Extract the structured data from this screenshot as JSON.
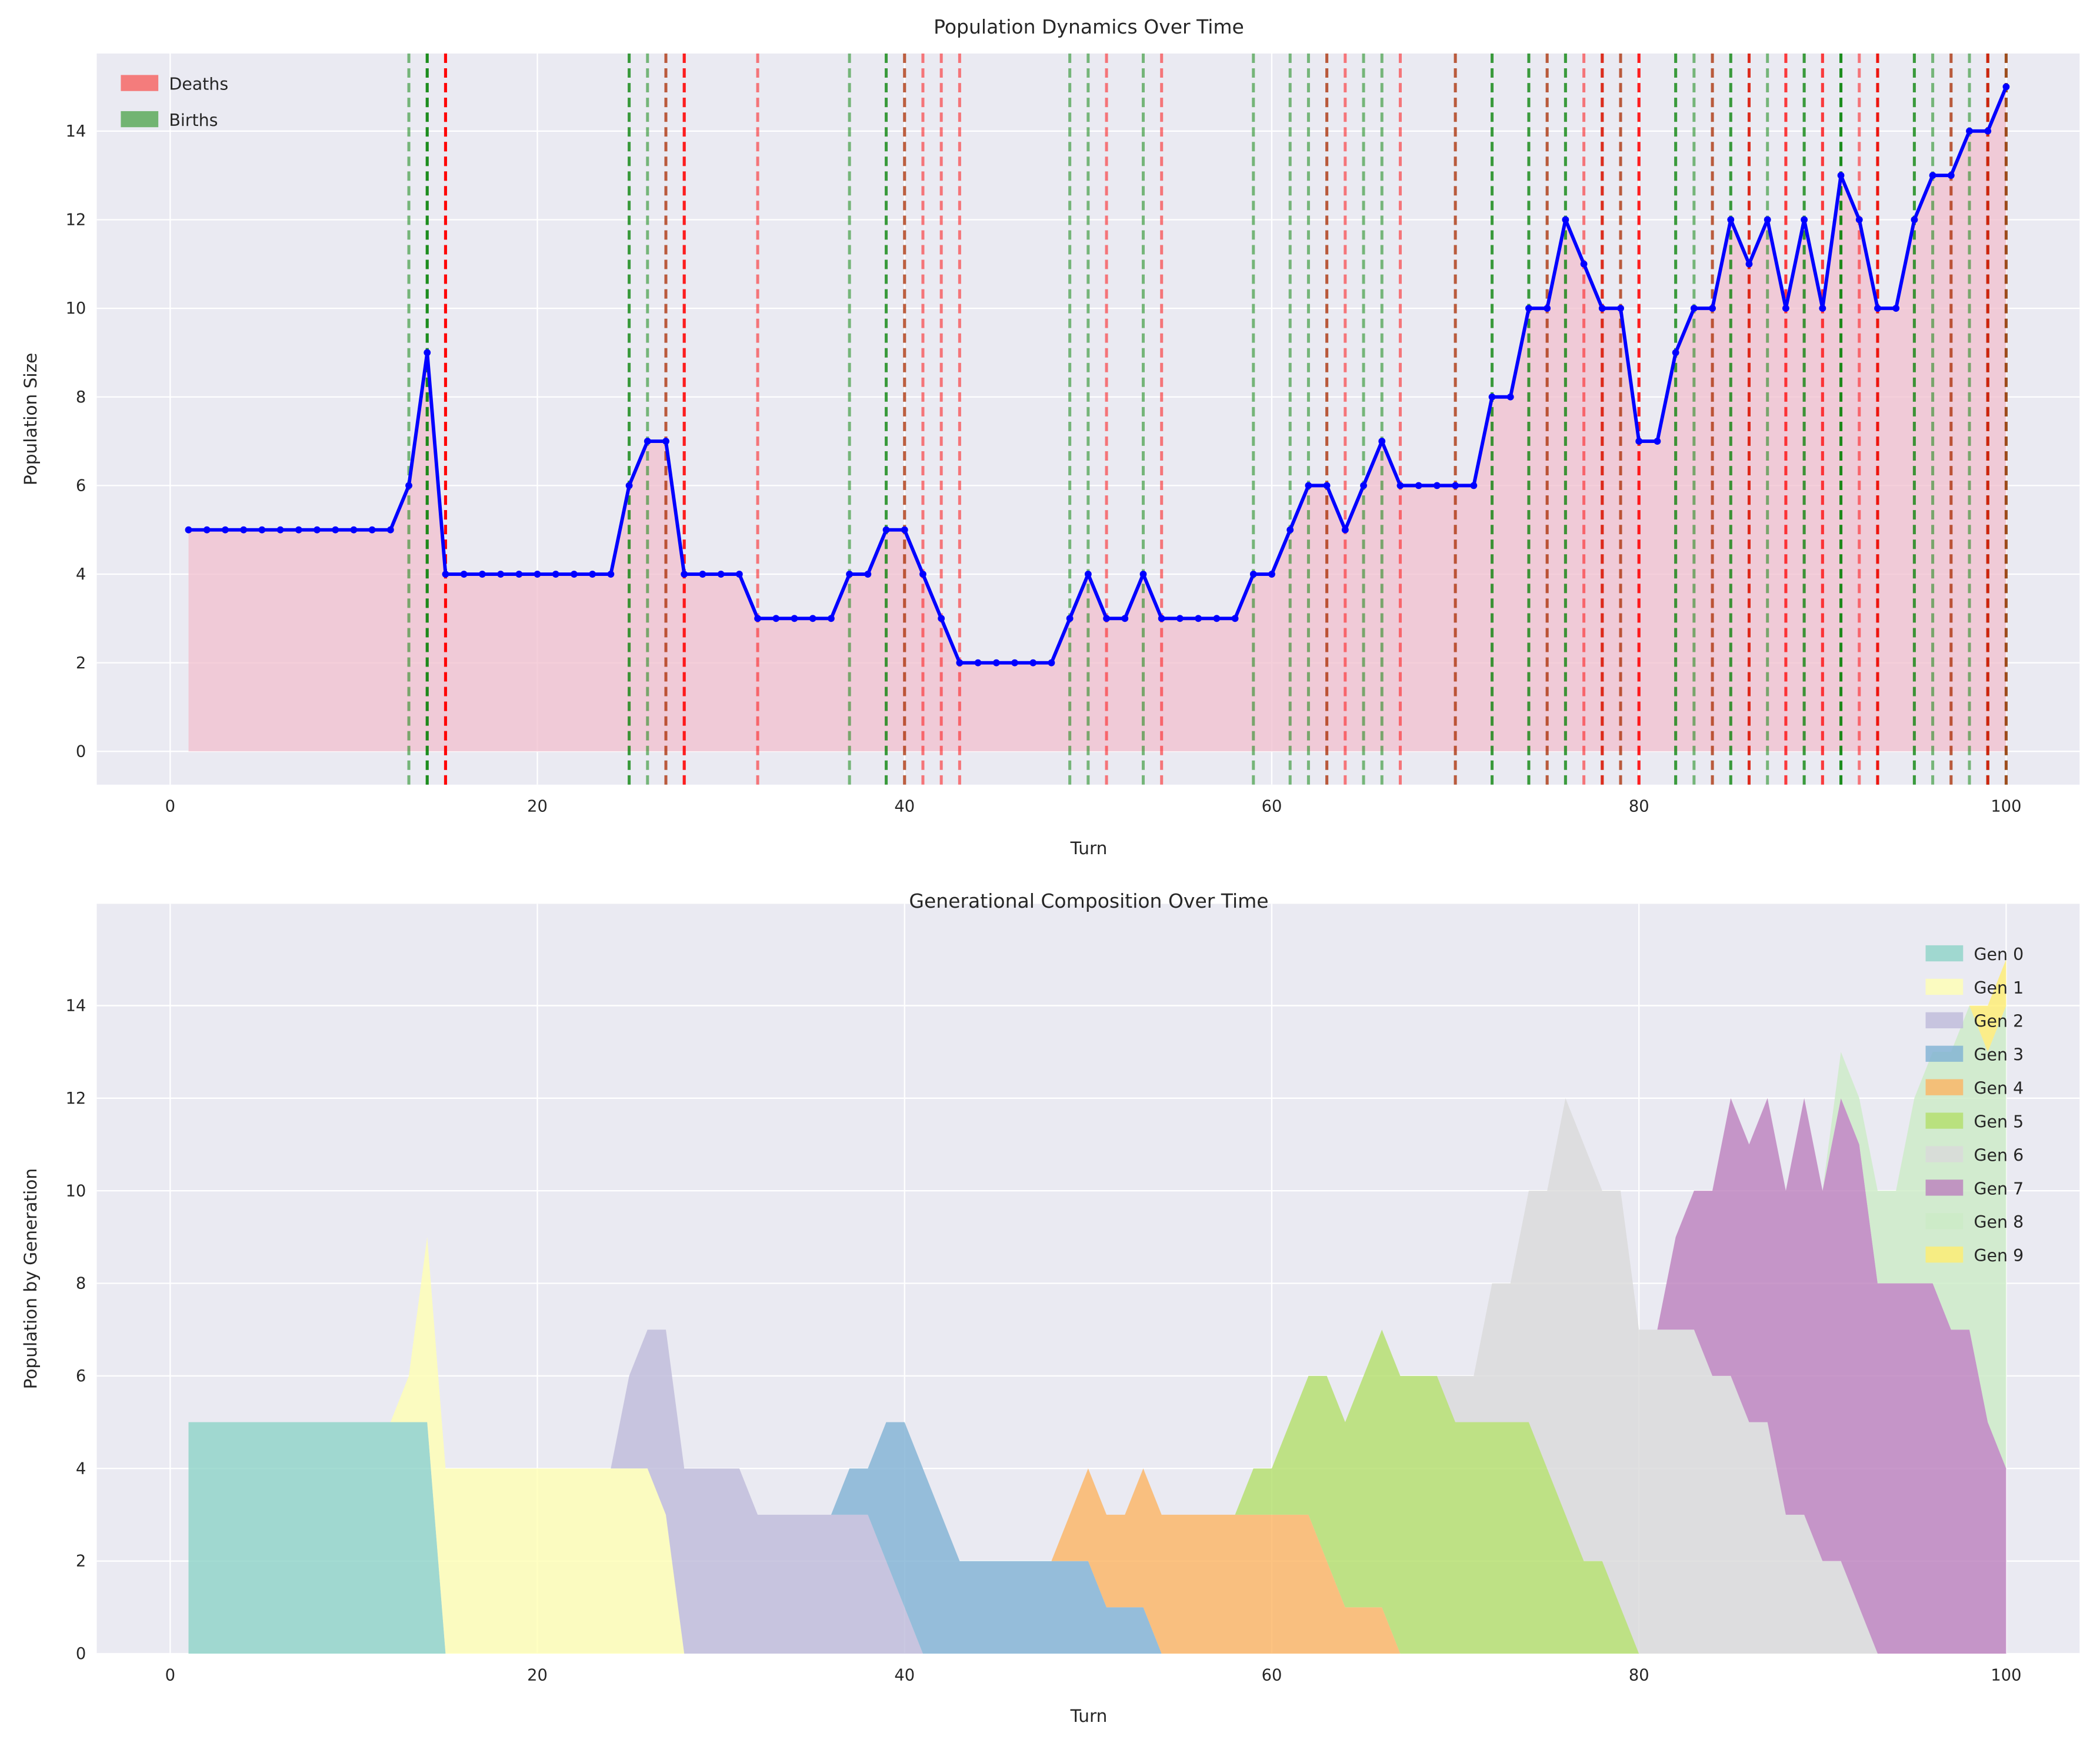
{
  "chart_data": [
    {
      "type": "line",
      "title": "Population Dynamics Over Time",
      "xlabel": "Turn",
      "ylabel": "Population Size",
      "xlim": [
        -4,
        104
      ],
      "ylim": [
        -0.75,
        15.75
      ],
      "xticks": [
        0,
        20,
        40,
        60,
        80,
        100
      ],
      "yticks": [
        0,
        2,
        4,
        6,
        8,
        10,
        12,
        14
      ],
      "grid": true,
      "legend_position": "top-left",
      "legend": [
        {
          "label": "Deaths",
          "color": "#f47c7c"
        },
        {
          "label": "Births",
          "color": "#72b472"
        }
      ],
      "line_color": "#0000ff",
      "fill_color": "#f2bfcd",
      "birth_color": "#008000",
      "death_color": "#ff0000",
      "turns_start": 1,
      "population": [
        5,
        5,
        5,
        5,
        5,
        5,
        5,
        5,
        5,
        5,
        5,
        5,
        6,
        9,
        4,
        4,
        4,
        4,
        4,
        4,
        4,
        4,
        4,
        4,
        6,
        7,
        7,
        4,
        4,
        4,
        4,
        3,
        3,
        3,
        3,
        3,
        4,
        4,
        5,
        5,
        4,
        3,
        2,
        2,
        2,
        2,
        2,
        2,
        3,
        4,
        3,
        3,
        4,
        3,
        3,
        3,
        3,
        3,
        4,
        4,
        5,
        6,
        6,
        5,
        6,
        7,
        6,
        6,
        6,
        6,
        6,
        8,
        8,
        10,
        10,
        12,
        11,
        10,
        10,
        7,
        7,
        9,
        10,
        10,
        12,
        11,
        12,
        10,
        12,
        10,
        13,
        12,
        10,
        10,
        12,
        13,
        13,
        14,
        14,
        15
      ],
      "births": [
        [
          13,
          1
        ],
        [
          14,
          3
        ],
        [
          25,
          2
        ],
        [
          26,
          1
        ],
        [
          27,
          1
        ],
        [
          37,
          1
        ],
        [
          39,
          2
        ],
        [
          40,
          1
        ],
        [
          49,
          1
        ],
        [
          50,
          1
        ],
        [
          53,
          1
        ],
        [
          59,
          1
        ],
        [
          61,
          1
        ],
        [
          62,
          1
        ],
        [
          63,
          1
        ],
        [
          65,
          1
        ],
        [
          66,
          1
        ],
        [
          70,
          1
        ],
        [
          72,
          2
        ],
        [
          74,
          2
        ],
        [
          75,
          1
        ],
        [
          76,
          2
        ],
        [
          78,
          1
        ],
        [
          79,
          1
        ],
        [
          82,
          2
        ],
        [
          83,
          1
        ],
        [
          84,
          1
        ],
        [
          85,
          2
        ],
        [
          86,
          1
        ],
        [
          87,
          1
        ],
        [
          89,
          2
        ],
        [
          91,
          3
        ],
        [
          93,
          1
        ],
        [
          95,
          2
        ],
        [
          96,
          1
        ],
        [
          97,
          1
        ],
        [
          98,
          1
        ],
        [
          99,
          2
        ],
        [
          100,
          2
        ]
      ],
      "deaths": [
        [
          15,
          5
        ],
        [
          27,
          1
        ],
        [
          28,
          3
        ],
        [
          32,
          1
        ],
        [
          40,
          1
        ],
        [
          41,
          1
        ],
        [
          42,
          1
        ],
        [
          43,
          1
        ],
        [
          51,
          1
        ],
        [
          54,
          1
        ],
        [
          63,
          1
        ],
        [
          64,
          1
        ],
        [
          67,
          1
        ],
        [
          70,
          1
        ],
        [
          75,
          1
        ],
        [
          77,
          1
        ],
        [
          78,
          2
        ],
        [
          79,
          1
        ],
        [
          80,
          3
        ],
        [
          84,
          1
        ],
        [
          86,
          2
        ],
        [
          88,
          2
        ],
        [
          90,
          2
        ],
        [
          92,
          1
        ],
        [
          93,
          3
        ],
        [
          97,
          1
        ],
        [
          99,
          2
        ],
        [
          100,
          1
        ]
      ]
    },
    {
      "type": "area",
      "stacked": true,
      "title": "Generational Composition Over Time",
      "xlabel": "Turn",
      "ylabel": "Population by Generation",
      "xlim": [
        -4,
        104
      ],
      "ylim": [
        0,
        16.2
      ],
      "xticks": [
        0,
        20,
        40,
        60,
        80,
        100
      ],
      "yticks": [
        0,
        2,
        4,
        6,
        8,
        10,
        12,
        14
      ],
      "grid": true,
      "legend_position": "top-right",
      "turns": [
        1,
        100
      ],
      "gens": [
        {
          "name": "Gen 0",
          "color": "#8dd3c7",
          "start_turn": 1,
          "values": [
            5,
            5,
            5,
            5,
            5,
            5,
            5,
            5,
            5,
            5,
            5,
            5,
            5,
            5
          ]
        },
        {
          "name": "Gen 1",
          "color": "#ffffb3",
          "start_turn": 13,
          "values": [
            1,
            4,
            4,
            4,
            4,
            4,
            4,
            4,
            4,
            4,
            4,
            4,
            4,
            4,
            3
          ]
        },
        {
          "name": "Gen 2",
          "color": "#bebada",
          "start_turn": 25,
          "values": [
            2,
            3,
            4,
            4,
            4,
            4,
            4,
            3,
            3,
            3,
            3,
            3,
            3,
            3,
            2,
            1
          ]
        },
        {
          "name": "Gen 3",
          "color": "#80b1d3",
          "start_turn": 37,
          "values": [
            1,
            1,
            3,
            4,
            4,
            3,
            2,
            2,
            2,
            2,
            2,
            2,
            2,
            2,
            1,
            1,
            1
          ]
        },
        {
          "name": "Gen 4",
          "color": "#fdb462",
          "start_turn": 49,
          "values": [
            1,
            2,
            2,
            2,
            3,
            3,
            3,
            3,
            3,
            3,
            3,
            3,
            3,
            3,
            2,
            1,
            1,
            1
          ]
        },
        {
          "name": "Gen 5",
          "color": "#b3de69",
          "start_turn": 59,
          "values": [
            1,
            1,
            2,
            3,
            4,
            4,
            5,
            6,
            6,
            6,
            6,
            5,
            5,
            5,
            5,
            5,
            4,
            3,
            2,
            2,
            1
          ]
        },
        {
          "name": "Gen 6",
          "color": "#d9d9d9",
          "start_turn": 70,
          "values": [
            1,
            1,
            3,
            3,
            5,
            6,
            9,
            9,
            8,
            9,
            7,
            7,
            7,
            7,
            6,
            6,
            5,
            5,
            3,
            3,
            2,
            2,
            1
          ]
        },
        {
          "name": "Gen 7",
          "color": "#bc80bd",
          "start_turn": 82,
          "values": [
            2,
            3,
            4,
            6,
            6,
            7,
            7,
            9,
            8,
            10,
            10,
            8,
            8,
            8,
            8,
            7,
            7,
            5,
            4
          ]
        },
        {
          "name": "Gen 8",
          "color": "#ccebc5",
          "start_turn": 91,
          "values": [
            1,
            1,
            2,
            2,
            4,
            5,
            6,
            7,
            8,
            10
          ]
        },
        {
          "name": "Gen 9",
          "color": "#ffed6f",
          "start_turn": 98,
          "values": [
            0,
            1,
            1
          ]
        }
      ]
    }
  ]
}
